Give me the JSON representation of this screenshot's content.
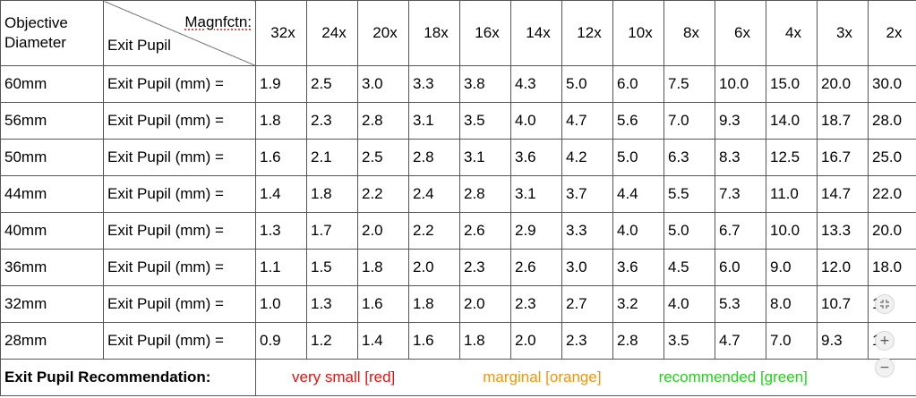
{
  "header": {
    "objective_line1": "Objective",
    "objective_line2": "Diameter",
    "magnification_label": "Magnfctn:",
    "exit_pupil_label": "Exit Pupil",
    "magnifications": [
      "32x",
      "24x",
      "20x",
      "18x",
      "16x",
      "14x",
      "12x",
      "10x",
      "8x",
      "6x",
      "4x",
      "3x",
      "2x"
    ]
  },
  "rows": [
    {
      "diameter": "60mm",
      "label": "Exit Pupil (mm)  =",
      "values": [
        "1.9",
        "2.5",
        "3.0",
        "3.3",
        "3.8",
        "4.3",
        "5.0",
        "6.0",
        "7.5",
        "10.0",
        "15.0",
        "20.0",
        "30.0"
      ],
      "colors": [
        "red",
        "orange",
        "green",
        "green",
        "green",
        "green",
        "green",
        "green",
        "green",
        "green",
        "green",
        "green",
        "green"
      ]
    },
    {
      "diameter": "56mm",
      "label": "Exit Pupil (mm)  =",
      "values": [
        "1.8",
        "2.3",
        "2.8",
        "3.1",
        "3.5",
        "4.0",
        "4.7",
        "5.6",
        "7.0",
        "9.3",
        "14.0",
        "18.7",
        "28.0"
      ],
      "colors": [
        "red",
        "orange",
        "orange",
        "green",
        "green",
        "green",
        "green",
        "green",
        "green",
        "green",
        "green",
        "green",
        "green"
      ]
    },
    {
      "diameter": "50mm",
      "label": "Exit Pupil (mm)  =",
      "values": [
        "1.6",
        "2.1",
        "2.5",
        "2.8",
        "3.1",
        "3.6",
        "4.2",
        "5.0",
        "6.3",
        "8.3",
        "12.5",
        "16.7",
        "25.0"
      ],
      "colors": [
        "red",
        "orange",
        "orange",
        "orange",
        "green",
        "green",
        "green",
        "green",
        "green",
        "green",
        "green",
        "green",
        "green"
      ]
    },
    {
      "diameter": "44mm",
      "label": "Exit Pupil (mm)  =",
      "values": [
        "1.4",
        "1.8",
        "2.2",
        "2.4",
        "2.8",
        "3.1",
        "3.7",
        "4.4",
        "5.5",
        "7.3",
        "11.0",
        "14.7",
        "22.0"
      ],
      "colors": [
        "red",
        "red",
        "orange",
        "orange",
        "orange",
        "green",
        "green",
        "green",
        "green",
        "green",
        "green",
        "green",
        "green"
      ]
    },
    {
      "diameter": "40mm",
      "label": "Exit Pupil (mm)  =",
      "values": [
        "1.3",
        "1.7",
        "2.0",
        "2.2",
        "2.6",
        "2.9",
        "3.3",
        "4.0",
        "5.0",
        "6.7",
        "10.0",
        "13.3",
        "20.0"
      ],
      "colors": [
        "red",
        "red",
        "orange",
        "orange",
        "orange",
        "orange",
        "green",
        "green",
        "green",
        "green",
        "green",
        "green",
        "green"
      ]
    },
    {
      "diameter": "36mm",
      "label": "Exit Pupil (mm)  =",
      "values": [
        "1.1",
        "1.5",
        "1.8",
        "2.0",
        "2.3",
        "2.6",
        "3.0",
        "3.6",
        "4.5",
        "6.0",
        "9.0",
        "12.0",
        "18.0"
      ],
      "colors": [
        "red",
        "red",
        "red",
        "red",
        "orange",
        "orange",
        "green",
        "green",
        "green",
        "green",
        "green",
        "green",
        "green"
      ]
    },
    {
      "diameter": "32mm",
      "label": "Exit Pupil (mm)  =",
      "values": [
        "1.0",
        "1.3",
        "1.6",
        "1.8",
        "2.0",
        "2.3",
        "2.7",
        "3.2",
        "4.0",
        "5.3",
        "8.0",
        "10.7",
        "16"
      ],
      "colors": [
        "red",
        "red",
        "red",
        "red",
        "orange",
        "orange",
        "orange",
        "green",
        "green",
        "green",
        "green",
        "green",
        "green"
      ]
    },
    {
      "diameter": "28mm",
      "label": "Exit Pupil (mm)  =",
      "values": [
        "0.9",
        "1.2",
        "1.4",
        "1.6",
        "1.8",
        "2.0",
        "2.3",
        "2.8",
        "3.5",
        "4.7",
        "7.0",
        "9.3",
        "14"
      ],
      "colors": [
        "red",
        "red",
        "red",
        "red",
        "red",
        "orange",
        "orange",
        "orange",
        "green",
        "green",
        "green",
        "green",
        "green"
      ]
    }
  ],
  "recommendation": {
    "title": "Exit Pupil Recommendation:",
    "red_label": "very small [red]",
    "orange_label": "marginal [orange]",
    "green_label": "recommended [green]"
  },
  "colors": {
    "red": "#e51212",
    "orange": "#f0960a",
    "green": "#22d21a"
  },
  "zoom_controls": {
    "fit_icon": "fit-screen-icon",
    "zoom_in_label": "+",
    "zoom_out_label": "−"
  }
}
